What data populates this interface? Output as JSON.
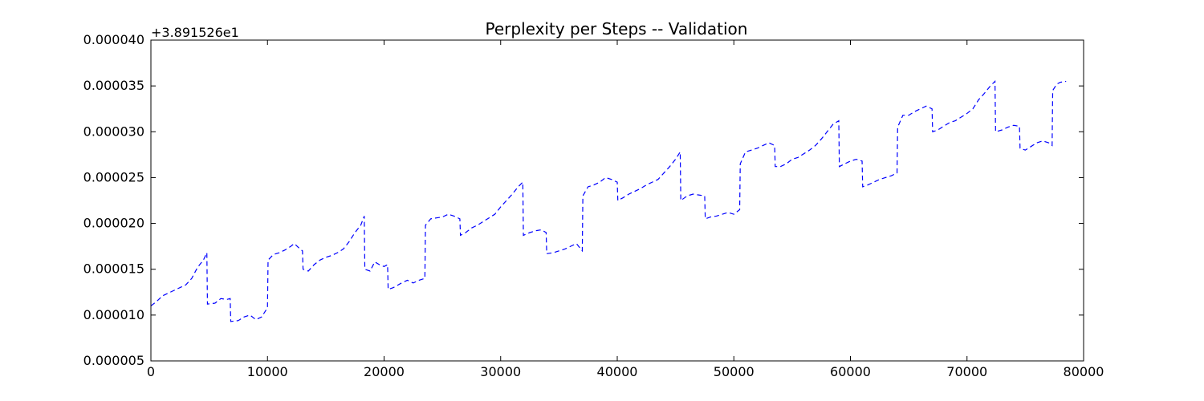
{
  "chart_data": {
    "type": "line",
    "title": "Perplexity per Steps -- Validation",
    "xlabel": "",
    "ylabel": "",
    "offset_text": "+3.891526e1",
    "y_offset": 38.91526,
    "xlim": [
      0,
      80000
    ],
    "ylim": [
      5e-06,
      4e-05
    ],
    "x_ticks": [
      0,
      10000,
      20000,
      30000,
      40000,
      50000,
      60000,
      70000,
      80000
    ],
    "x_tick_labels": [
      "0",
      "10000",
      "20000",
      "30000",
      "40000",
      "50000",
      "60000",
      "70000",
      "80000"
    ],
    "y_ticks": [
      5e-06,
      1e-05,
      1.5e-05,
      2e-05,
      2.5e-05,
      3e-05,
      3.5e-05,
      4e-05
    ],
    "y_tick_labels": [
      "0.000005",
      "0.000010",
      "0.000015",
      "0.000020",
      "0.000025",
      "0.000030",
      "0.000035",
      "0.000040"
    ],
    "grid": false,
    "line_style": "dashed",
    "series": [
      {
        "color": "#0000ff",
        "x": [
          0,
          500,
          1000,
          1500,
          2000,
          2500,
          3000,
          3500,
          4000,
          4500,
          4800,
          4850,
          5500,
          6000,
          6500,
          6800,
          6850,
          7500,
          8000,
          8500,
          9000,
          9500,
          10000,
          10050,
          10500,
          11000,
          11500,
          12000,
          12300,
          12800,
          13000,
          13050,
          13500,
          14000,
          14500,
          15000,
          15500,
          16000,
          16500,
          17000,
          17500,
          18000,
          18300,
          18350,
          18800,
          19200,
          19600,
          20000,
          20300,
          20350,
          20800,
          21500,
          22000,
          22500,
          23000,
          23500,
          23550,
          24000,
          24500,
          25000,
          25500,
          26000,
          26500,
          26550,
          27000,
          27500,
          28000,
          28500,
          29000,
          29500,
          30000,
          30500,
          31000,
          31500,
          31900,
          31950,
          32500,
          33000,
          33500,
          33900,
          33950,
          34500,
          35000,
          35500,
          36000,
          36500,
          37000,
          37050,
          37500,
          38000,
          38500,
          39000,
          39500,
          40000,
          40050,
          40500,
          41000,
          41500,
          42000,
          42500,
          43000,
          43500,
          44000,
          44500,
          45000,
          45400,
          45450,
          46000,
          46500,
          47000,
          47500,
          47550,
          48000,
          48500,
          49000,
          49500,
          50000,
          50500,
          50550,
          51000,
          51500,
          52000,
          52500,
          53000,
          53500,
          53550,
          54000,
          54500,
          55000,
          55500,
          56000,
          56500,
          57000,
          57500,
          58000,
          58500,
          59000,
          59050,
          59500,
          60000,
          60500,
          61000,
          61050,
          61500,
          62000,
          62500,
          63000,
          63500,
          64000,
          64050,
          64500,
          65000,
          65500,
          66000,
          66500,
          67000,
          67050,
          67500,
          68000,
          68500,
          69000,
          69500,
          70000,
          70500,
          71000,
          71500,
          72000,
          72400,
          72450,
          73000,
          73500,
          74000,
          74500,
          74550,
          75000,
          75500,
          76000,
          76500,
          77000,
          77300,
          77350,
          77700,
          78000,
          78500
        ],
        "y": [
          1.1e-05,
          1.15e-05,
          1.21e-05,
          1.24e-05,
          1.27e-05,
          1.3e-05,
          1.33e-05,
          1.4e-05,
          1.52e-05,
          1.6e-05,
          1.68e-05,
          1.12e-05,
          1.13e-05,
          1.18e-05,
          1.17e-05,
          1.18e-05,
          9.3e-06,
          9.4e-06,
          9.8e-06,
          1e-05,
          9.5e-06,
          9.8e-06,
          1.08e-05,
          1.6e-05,
          1.66e-05,
          1.68e-05,
          1.71e-05,
          1.75e-05,
          1.78e-05,
          1.72e-05,
          1.7e-05,
          1.5e-05,
          1.48e-05,
          1.55e-05,
          1.6e-05,
          1.63e-05,
          1.65e-05,
          1.68e-05,
          1.72e-05,
          1.8e-05,
          1.9e-05,
          1.98e-05,
          2.08e-05,
          1.5e-05,
          1.48e-05,
          1.58e-05,
          1.55e-05,
          1.53e-05,
          1.55e-05,
          1.28e-05,
          1.3e-05,
          1.35e-05,
          1.38e-05,
          1.35e-05,
          1.38e-05,
          1.4e-05,
          1.98e-05,
          2.05e-05,
          2.06e-05,
          2.07e-05,
          2.1e-05,
          2.08e-05,
          2.05e-05,
          1.87e-05,
          1.9e-05,
          1.95e-05,
          1.98e-05,
          2.02e-05,
          2.06e-05,
          2.1e-05,
          2.18e-05,
          2.25e-05,
          2.32e-05,
          2.4e-05,
          2.45e-05,
          1.87e-05,
          1.9e-05,
          1.92e-05,
          1.93e-05,
          1.9e-05,
          1.67e-05,
          1.68e-05,
          1.7e-05,
          1.72e-05,
          1.75e-05,
          1.78e-05,
          1.7e-05,
          2.3e-05,
          2.4e-05,
          2.42e-05,
          2.45e-05,
          2.5e-05,
          2.48e-05,
          2.45e-05,
          2.25e-05,
          2.28e-05,
          2.32e-05,
          2.35e-05,
          2.38e-05,
          2.42e-05,
          2.45e-05,
          2.48e-05,
          2.55e-05,
          2.62e-05,
          2.7e-05,
          2.78e-05,
          2.25e-05,
          2.3e-05,
          2.32e-05,
          2.31e-05,
          2.3e-05,
          2.05e-05,
          2.07e-05,
          2.08e-05,
          2.1e-05,
          2.12e-05,
          2.1e-05,
          2.15e-05,
          2.65e-05,
          2.78e-05,
          2.8e-05,
          2.82e-05,
          2.85e-05,
          2.88e-05,
          2.85e-05,
          2.62e-05,
          2.62e-05,
          2.65e-05,
          2.7e-05,
          2.72e-05,
          2.76e-05,
          2.8e-05,
          2.85e-05,
          2.92e-05,
          3e-05,
          3.08e-05,
          3.12e-05,
          2.62e-05,
          2.65e-05,
          2.68e-05,
          2.7e-05,
          2.68e-05,
          2.4e-05,
          2.42e-05,
          2.45e-05,
          2.48e-05,
          2.5e-05,
          2.52e-05,
          2.55e-05,
          3.05e-05,
          3.18e-05,
          3.18e-05,
          3.22e-05,
          3.25e-05,
          3.28e-05,
          3.25e-05,
          3e-05,
          3.02e-05,
          3.06e-05,
          3.1e-05,
          3.12e-05,
          3.16e-05,
          3.2e-05,
          3.25e-05,
          3.35e-05,
          3.42e-05,
          3.5e-05,
          3.55e-05,
          3e-05,
          3.02e-05,
          3.05e-05,
          3.07e-05,
          3.06e-05,
          2.82e-05,
          2.8e-05,
          2.84e-05,
          2.88e-05,
          2.9e-05,
          2.88e-05,
          2.85e-05,
          3.45e-05,
          3.52e-05,
          3.54e-05,
          3.55e-05
        ]
      }
    ]
  }
}
